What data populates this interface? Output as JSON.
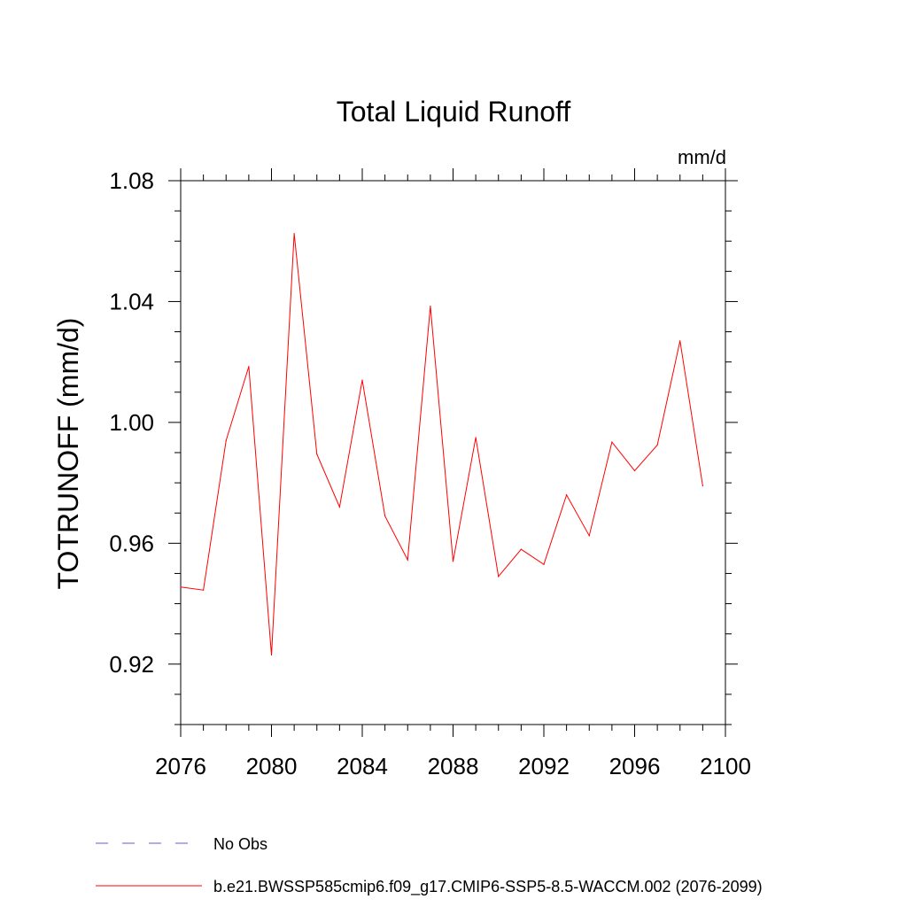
{
  "chart_data": {
    "type": "line",
    "title": "Total Liquid Runoff",
    "units": "mm/d",
    "ylabel": "TOTRUNOFF  (mm/d)",
    "xlabel": "",
    "xlim": [
      2076,
      2100
    ],
    "ylim": [
      0.9,
      1.08
    ],
    "xticks": [
      2076,
      2080,
      2084,
      2088,
      2092,
      2096,
      2100
    ],
    "xtick_labels": [
      "2076",
      "2080",
      "2084",
      "2088",
      "2092",
      "2096",
      "2100"
    ],
    "yticks": [
      0.92,
      0.96,
      1.0,
      1.04,
      1.08
    ],
    "ytick_labels": [
      "0.92",
      "0.96",
      "1.00",
      "1.04",
      "1.08"
    ],
    "grid": false,
    "legend_position": "bottom-left",
    "series": [
      {
        "name": "b.e21.BWSSP585cmip6.f09_g17.CMIP6-SSP5-8.5-WACCM.002 (2076-2099)",
        "color": "#ff0000",
        "style": "solid",
        "x": [
          2076,
          2077,
          2078,
          2079,
          2080,
          2081,
          2082,
          2083,
          2084,
          2085,
          2086,
          2087,
          2088,
          2089,
          2090,
          2091,
          2092,
          2093,
          2094,
          2095,
          2096,
          2097,
          2098,
          2099
        ],
        "values": [
          0.9455,
          0.9445,
          0.994,
          1.0185,
          0.923,
          1.0625,
          0.9895,
          0.972,
          1.014,
          0.969,
          0.9545,
          1.0385,
          0.954,
          0.995,
          0.949,
          0.958,
          0.953,
          0.976,
          0.9625,
          0.9935,
          0.984,
          0.9925,
          1.027,
          0.979
        ]
      }
    ],
    "legend": [
      {
        "label": "No Obs",
        "color": "#6a5acd",
        "style": "dashed"
      },
      {
        "label": "b.e21.BWSSP585cmip6.f09_g17.CMIP6-SSP5-8.5-WACCM.002 (2076-2099)",
        "color": "#ff0000",
        "style": "solid"
      }
    ]
  }
}
